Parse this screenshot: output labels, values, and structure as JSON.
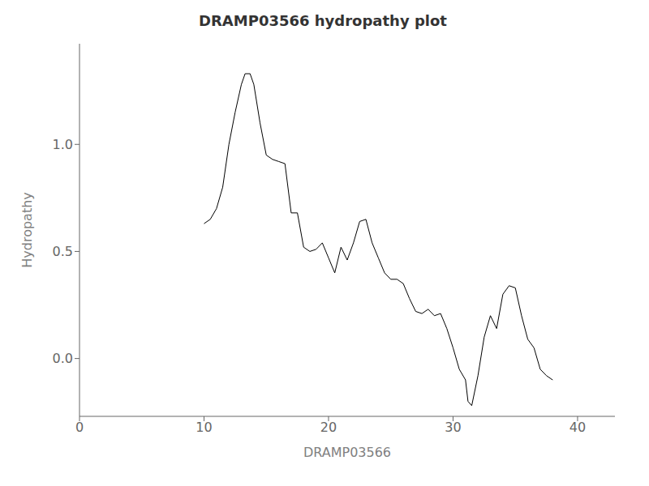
{
  "chart_data": {
    "type": "line",
    "title": "DRAMP03566 hydropathy plot",
    "xlabel": "DRAMP03566",
    "ylabel": "Hydropathy",
    "xlim": [
      0,
      43
    ],
    "ylim": [
      -0.27,
      1.47
    ],
    "xticks": [
      0,
      10,
      20,
      30,
      40
    ],
    "yticks": [
      {
        "value": 0,
        "label": "0.0"
      },
      0.5,
      {
        "value": 1,
        "label": "1.0"
      }
    ],
    "color": "#000000",
    "grid": false,
    "x": [
      10,
      10.5,
      11,
      11.5,
      12,
      12.5,
      13,
      13.3,
      13.7,
      14,
      14.5,
      15,
      15.5,
      16,
      16.5,
      17,
      17.5,
      18,
      18.5,
      19,
      19.5,
      20,
      20.5,
      21,
      21.5,
      22,
      22.5,
      23,
      23.5,
      24,
      24.5,
      25,
      25.5,
      26,
      26.5,
      27,
      27.5,
      28,
      28.5,
      29,
      29.5,
      30,
      30.5,
      31,
      31.2,
      31.5,
      32,
      32.5,
      33,
      33.5,
      34,
      34.5,
      35,
      35.5,
      36,
      36.5,
      37,
      37.5,
      38
    ],
    "values": [
      0.63,
      0.65,
      0.7,
      0.8,
      1.0,
      1.15,
      1.28,
      1.33,
      1.33,
      1.28,
      1.1,
      0.95,
      0.93,
      0.92,
      0.91,
      0.68,
      0.68,
      0.52,
      0.5,
      0.51,
      0.54,
      0.47,
      0.4,
      0.52,
      0.46,
      0.54,
      0.64,
      0.65,
      0.54,
      0.47,
      0.4,
      0.37,
      0.37,
      0.35,
      0.28,
      0.22,
      0.21,
      0.23,
      0.2,
      0.21,
      0.14,
      0.05,
      -0.05,
      -0.1,
      -0.2,
      -0.22,
      -0.08,
      0.1,
      0.2,
      0.14,
      0.3,
      0.34,
      0.33,
      0.2,
      0.09,
      0.05,
      -0.05,
      -0.08,
      -0.1
    ]
  }
}
